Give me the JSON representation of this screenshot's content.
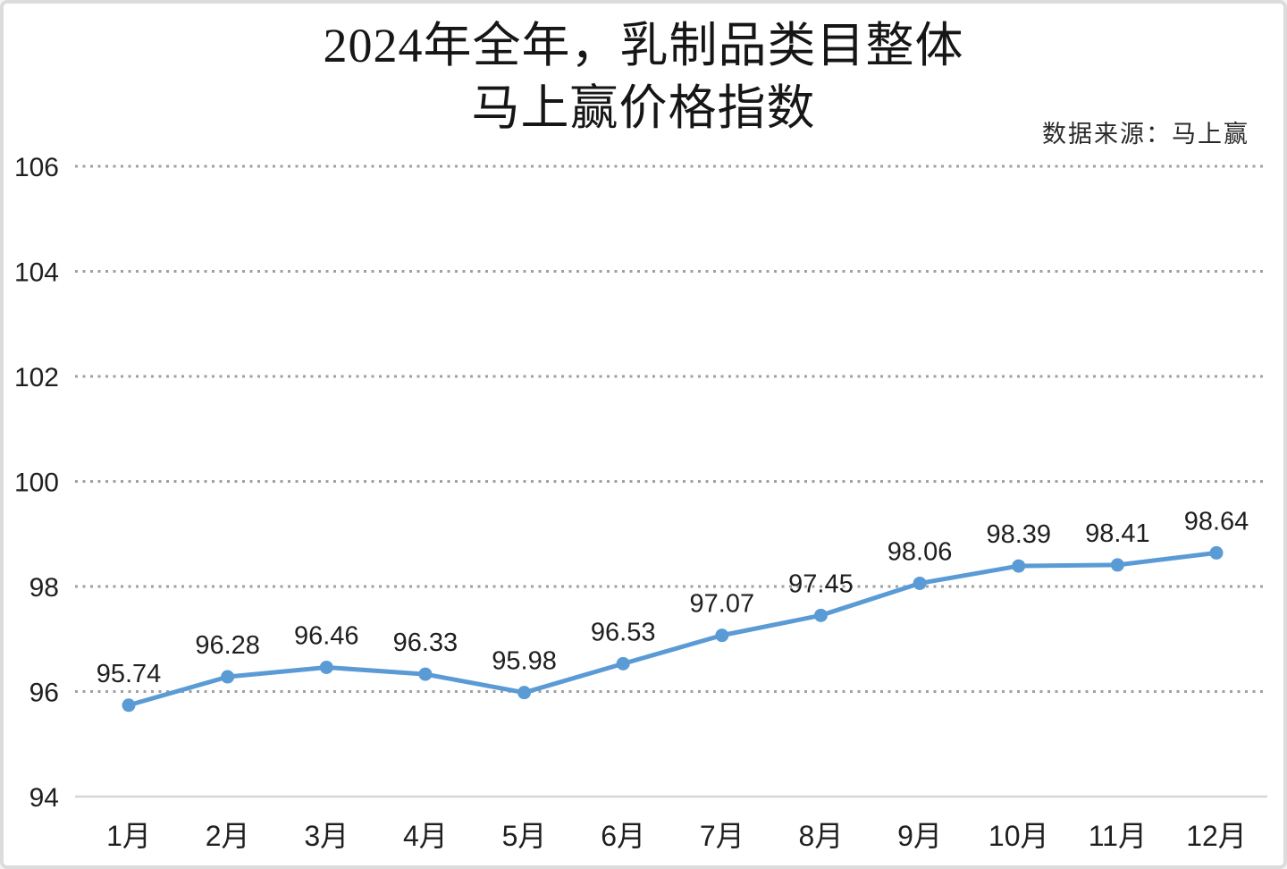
{
  "header": {
    "title_line1": "2024年全年，乳制品类目整体",
    "title_line2": "马上赢价格指数",
    "source_note": "数据来源：马上赢"
  },
  "colors": {
    "line": "#5B9BD5",
    "marker": "#5B9BD5",
    "gridline": "#A0A0A0",
    "axis_line": "#D6D6D6",
    "text": "#1F1F1F",
    "border": "#DCDCDC",
    "background": "#FFFFFF"
  },
  "chart_data": {
    "type": "line",
    "title": "2024年全年，乳制品类目整体 马上赢价格指数",
    "source": "数据来源：马上赢",
    "categories": [
      "1月",
      "2月",
      "3月",
      "4月",
      "5月",
      "6月",
      "7月",
      "8月",
      "9月",
      "10月",
      "11月",
      "12月"
    ],
    "values": [
      95.74,
      96.28,
      96.46,
      96.33,
      95.98,
      96.53,
      97.07,
      97.45,
      98.06,
      98.39,
      98.41,
      98.64
    ],
    "data_labels": [
      "95.74",
      "96.28",
      "96.46",
      "96.33",
      "95.98",
      "96.53",
      "97.07",
      "97.45",
      "98.06",
      "98.39",
      "98.41",
      "98.64"
    ],
    "ylim": [
      94,
      106
    ],
    "yticks": [
      94,
      96,
      98,
      100,
      102,
      104,
      106
    ],
    "grid": "horizontal-dotted",
    "legend": "none",
    "marker": "circle"
  }
}
